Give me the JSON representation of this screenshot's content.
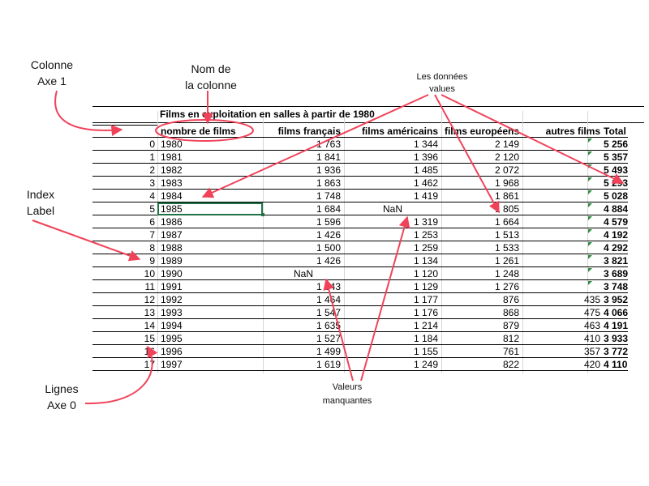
{
  "annotations": {
    "colonne": [
      "Colonne",
      "Axe 1"
    ],
    "nom_colonne": [
      "Nom de",
      "la colonne"
    ],
    "donnees": [
      "Les données",
      "values"
    ],
    "index": [
      "Index",
      "Label"
    ],
    "lignes": [
      "Lignes",
      "Axe 0"
    ],
    "manquantes": [
      "Valeurs",
      "manquantes"
    ]
  },
  "colors": {
    "arrow": "#f0435a",
    "selection": "#217346",
    "indicator": "#2e8b3d"
  },
  "table": {
    "title": "Films en exploitation en salles à partir de 1980",
    "headers": [
      "",
      "nombre de films",
      "films français",
      "films américains",
      "films européens",
      "autres films",
      "Total"
    ],
    "rows": [
      [
        "0",
        "1980",
        "1 763",
        "1 344",
        "2 149",
        "",
        "5 256"
      ],
      [
        "1",
        "1981",
        "1 841",
        "1 396",
        "2 120",
        "",
        "5 357"
      ],
      [
        "2",
        "1982",
        "1 936",
        "1 485",
        "2 072",
        "",
        "5 493"
      ],
      [
        "3",
        "1983",
        "1 863",
        "1 462",
        "1 968",
        "",
        "5 293"
      ],
      [
        "4",
        "1984",
        "1 748",
        "1 419",
        "1 861",
        "",
        "5 028"
      ],
      [
        "5",
        "1985",
        "1 684",
        "NaN",
        "1 805",
        "",
        "4 884"
      ],
      [
        "6",
        "1986",
        "1 596",
        "1 319",
        "1 664",
        "",
        "4 579"
      ],
      [
        "7",
        "1987",
        "1 426",
        "1 253",
        "1 513",
        "",
        "4 192"
      ],
      [
        "8",
        "1988",
        "1 500",
        "1 259",
        "1 533",
        "",
        "4 292"
      ],
      [
        "9",
        "1989",
        "1 426",
        "1 134",
        "1 261",
        "",
        "3 821"
      ],
      [
        "10",
        "1990",
        "NaN",
        "1 120",
        "1 248",
        "",
        "3 689"
      ],
      [
        "11",
        "1991",
        "1 343",
        "1 129",
        "1 276",
        "",
        "3 748"
      ],
      [
        "12",
        "1992",
        "1 464",
        "1 177",
        "876",
        "435",
        "3 952"
      ],
      [
        "13",
        "1993",
        "1 547",
        "1 176",
        "868",
        "475",
        "4 066"
      ],
      [
        "14",
        "1994",
        "1 635",
        "1 214",
        "879",
        "463",
        "4 191"
      ],
      [
        "15",
        "1995",
        "1 527",
        "1 184",
        "812",
        "410",
        "3 933"
      ],
      [
        "16",
        "1996",
        "1 499",
        "1 155",
        "761",
        "357",
        "3 772"
      ],
      [
        "17",
        "1997",
        "1 619",
        "1 249",
        "822",
        "420",
        "4 110"
      ]
    ]
  }
}
